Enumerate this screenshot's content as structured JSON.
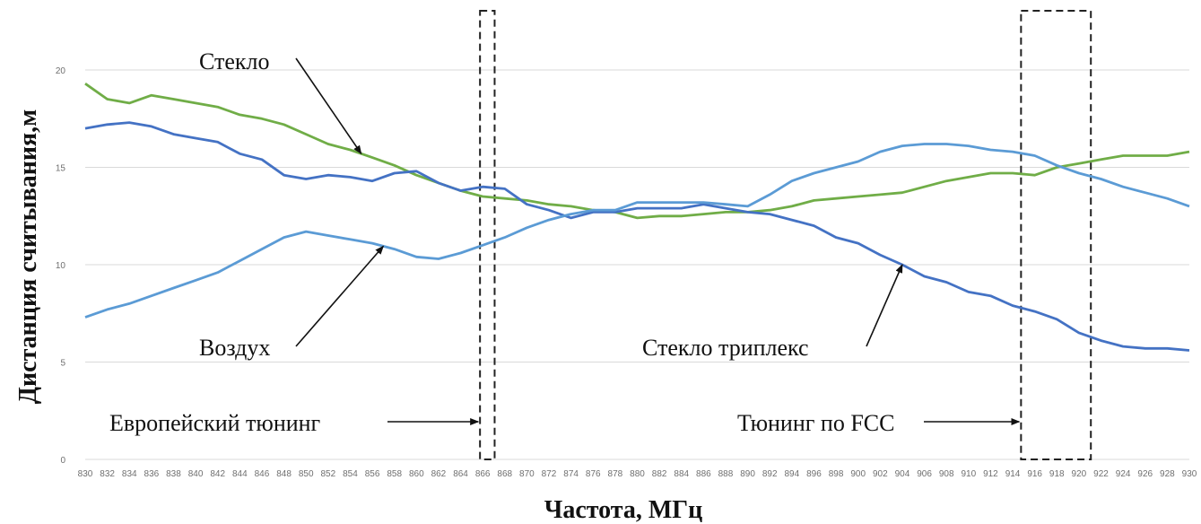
{
  "chart_data": {
    "type": "line",
    "title": "",
    "xlabel": "Частота, МГц",
    "ylabel": "Дистанция считывания,м",
    "ylim": [
      0,
      20
    ],
    "yticks": [
      0,
      5,
      10,
      15,
      20
    ],
    "grid": true,
    "x": [
      830,
      832,
      834,
      836,
      838,
      840,
      842,
      844,
      846,
      848,
      850,
      852,
      854,
      856,
      858,
      860,
      862,
      864,
      866,
      868,
      870,
      872,
      874,
      876,
      878,
      880,
      882,
      884,
      886,
      888,
      890,
      892,
      894,
      896,
      898,
      900,
      902,
      904,
      906,
      908,
      910,
      912,
      914,
      916,
      918,
      920,
      922,
      924,
      926,
      928,
      930
    ],
    "series": [
      {
        "name": "Стекло",
        "color": "#70ad47",
        "values": [
          19.3,
          18.5,
          18.3,
          18.7,
          18.5,
          18.3,
          18.1,
          17.7,
          17.5,
          17.2,
          16.7,
          16.2,
          15.9,
          15.5,
          15.1,
          14.6,
          14.2,
          13.8,
          13.5,
          13.4,
          13.3,
          13.1,
          13.0,
          12.8,
          12.7,
          12.4,
          12.5,
          12.5,
          12.6,
          12.7,
          12.7,
          12.8,
          13.0,
          13.3,
          13.4,
          13.5,
          13.6,
          13.7,
          14.0,
          14.3,
          14.5,
          14.7,
          14.7,
          14.6,
          15.0,
          15.2,
          15.4,
          15.6,
          15.6,
          15.6,
          15.8
        ]
      },
      {
        "name": "Стекло триплекс",
        "color": "#4472c4",
        "values": [
          17.0,
          17.2,
          17.3,
          17.1,
          16.7,
          16.5,
          16.3,
          15.7,
          15.4,
          14.6,
          14.4,
          14.6,
          14.5,
          14.3,
          14.7,
          14.8,
          14.2,
          13.8,
          14.0,
          13.9,
          13.1,
          12.8,
          12.4,
          12.7,
          12.7,
          12.9,
          12.9,
          12.9,
          13.1,
          12.9,
          12.7,
          12.6,
          12.3,
          12.0,
          11.4,
          11.1,
          10.5,
          10.0,
          9.4,
          9.1,
          8.6,
          8.4,
          7.9,
          7.6,
          7.2,
          6.5,
          6.1,
          5.8,
          5.7,
          5.7,
          5.6
        ]
      },
      {
        "name": "Воздух",
        "color": "#5b9bd5",
        "values": [
          7.3,
          7.7,
          8.0,
          8.4,
          8.8,
          9.2,
          9.6,
          10.2,
          10.8,
          11.4,
          11.7,
          11.5,
          11.3,
          11.1,
          10.8,
          10.4,
          10.3,
          10.6,
          11.0,
          11.4,
          11.9,
          12.3,
          12.6,
          12.8,
          12.8,
          13.2,
          13.2,
          13.2,
          13.2,
          13.1,
          13.0,
          13.6,
          14.3,
          14.7,
          15.0,
          15.3,
          15.8,
          16.1,
          16.2,
          16.2,
          16.1,
          15.9,
          15.8,
          15.6,
          15.1,
          14.7,
          14.4,
          14.0,
          13.7,
          13.4,
          13.0
        ]
      }
    ],
    "annotations": [
      {
        "text": "Стекло",
        "series": "Стекло",
        "target_x": 855
      },
      {
        "text": "Воздух",
        "series": "Воздух",
        "target_x": 857
      },
      {
        "text": "Стекло триплекс",
        "series": "Стекло триплекс",
        "target_x": 904
      },
      {
        "text": "Европейский тюнинг",
        "target_x": 866
      },
      {
        "text": "Тюнинг по FCC",
        "target_x": 915
      }
    ],
    "regions": [
      {
        "name": "Европейский тюнинг",
        "x_range": [
          866,
          867
        ]
      },
      {
        "name": "Тюнинг по FCC",
        "x_range": [
          915,
          921
        ]
      }
    ]
  }
}
